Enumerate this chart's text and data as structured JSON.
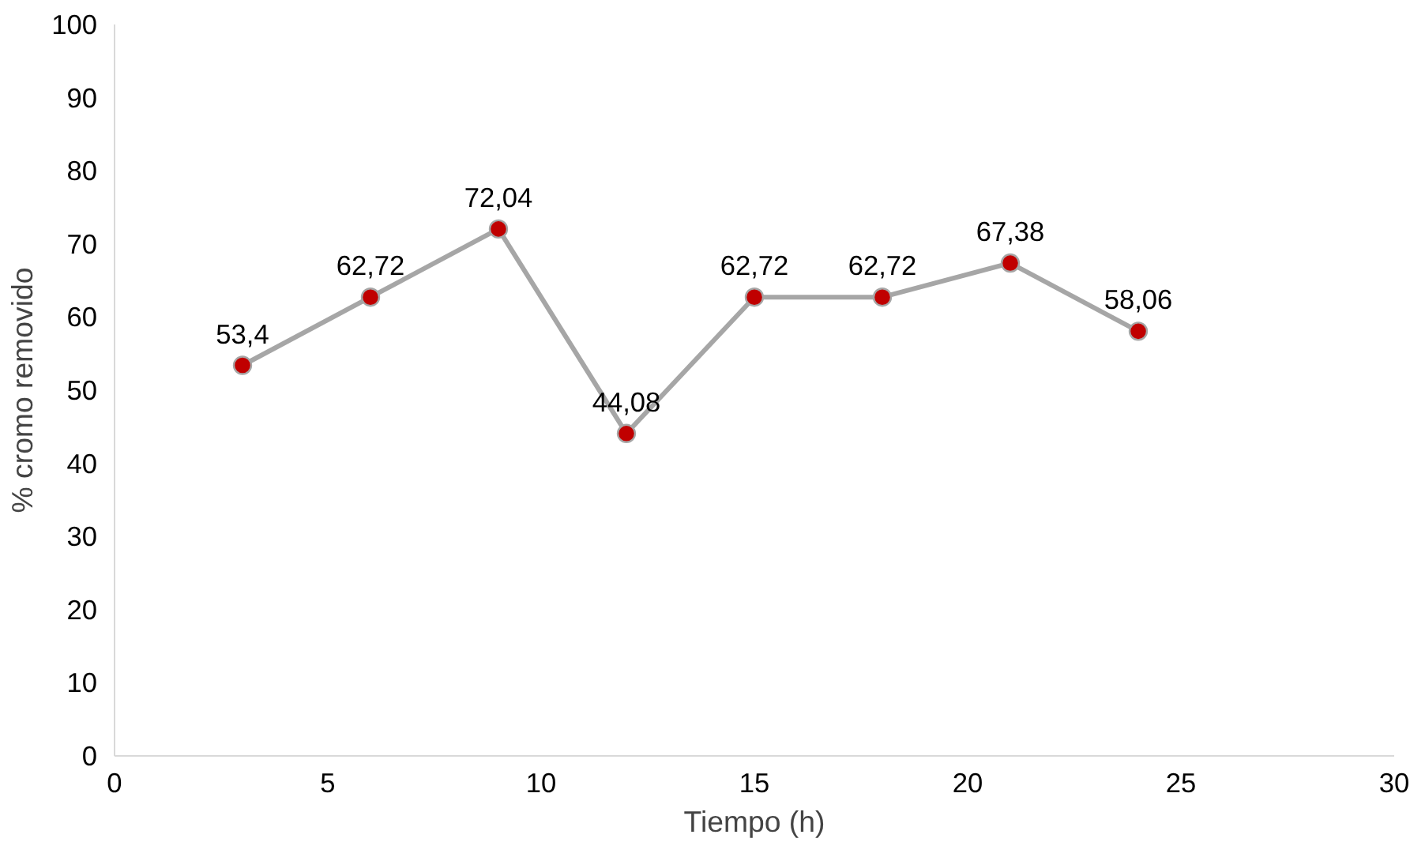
{
  "chart_data": {
    "type": "line",
    "xlabel": "Tiempo (h)",
    "ylabel": "% cromo removido",
    "x": [
      3,
      6,
      9,
      12,
      15,
      18,
      21,
      24
    ],
    "series": [
      {
        "color": "#a6a6a6",
        "colors": [
          "#c00000",
          "#c00000",
          "#c00000",
          "#c00000",
          "#c00000",
          "#c00000",
          "#c00000",
          "#c00000"
        ],
        "values": [
          53.4,
          62.72,
          72.04,
          44.08,
          62.72,
          62.72,
          67.38,
          58.06
        ],
        "value_labels": [
          "53,4",
          "62,72",
          "72,04",
          "44,08",
          "62,72",
          "62,72",
          "67,38",
          "58,06"
        ]
      }
    ],
    "xlim": [
      0,
      30
    ],
    "xticks": [
      0,
      5,
      10,
      15,
      20,
      25,
      30
    ],
    "ylim": [
      0,
      100
    ],
    "yticks": [
      0,
      10,
      20,
      30,
      40,
      50,
      60,
      70,
      80,
      90,
      100
    ],
    "grid": false,
    "marker": "circle",
    "line_style": "solid"
  }
}
